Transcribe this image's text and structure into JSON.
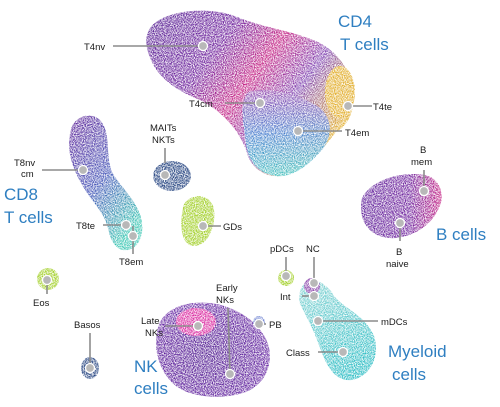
{
  "groups": {
    "cd4": [
      "CD4",
      "T cells"
    ],
    "cd8": [
      "CD8",
      "T cells"
    ],
    "b": "B cells",
    "nk": [
      "NK",
      "cells"
    ],
    "myeloid": [
      "Myeloid",
      "cells"
    ]
  },
  "labels": {
    "t4nv": "T4nv",
    "t4cm": "T4cm",
    "t4te": "T4te",
    "t4em": "T4em",
    "t8nv": [
      "T8nv",
      "cm"
    ],
    "mait": [
      "MAITs",
      "NKTs"
    ],
    "t8te": "T8te",
    "t8em": "T8em",
    "gds": "GDs",
    "bmem": [
      "B",
      "mem"
    ],
    "bnaive": [
      "B",
      "naive"
    ],
    "pdcs": "pDCs",
    "nc": "NC",
    "int": "Int",
    "mdcs": "mDCs",
    "class": "Class",
    "pb": "PB",
    "eos": "Eos",
    "basos": "Basos",
    "earlynk": [
      "Early",
      "NKs"
    ],
    "latenk": [
      "Late",
      "NKs"
    ]
  },
  "colors": {
    "purple": "#4a148c",
    "magenta": "#d81b9a",
    "teal": "#33c4c4",
    "lime": "#9ccc1a",
    "navy": "#1a3a7a",
    "gold": "#e0a81e",
    "group_text": "#2f7fc1"
  }
}
